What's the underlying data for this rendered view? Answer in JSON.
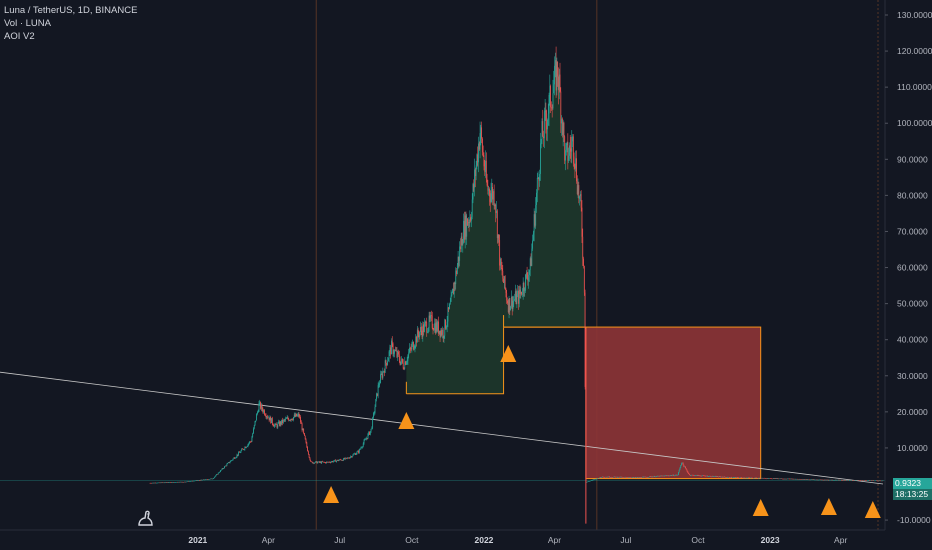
{
  "legend": {
    "symbol": "Luna / TetherUS, 1D, BINANCE",
    "volume": "Vol · LUNA",
    "indicator": "AOI V2"
  },
  "colors": {
    "background": "#131722",
    "up": "#26a69a",
    "down": "#ef5350",
    "zone_green": "#1f3a2c",
    "zone_red": "#8b3436",
    "zone_border": "#f7931a",
    "triangle": "#f7931a",
    "trendline": "#c8c8c8",
    "session_line": "#8a4b2a"
  },
  "current_price": "0.9323",
  "countdown": "18:13:25",
  "icons": [
    "tradingview-logo-icon"
  ],
  "chart_data": {
    "type": "candlestick",
    "title": "Luna / TetherUS, 1D, BINANCE",
    "x_range": [
      "2020-11-01",
      "2023-05-25"
    ],
    "y_range": [
      -12,
      135
    ],
    "y_ticks": [
      -10,
      0,
      10,
      20,
      30,
      40,
      50,
      60,
      70,
      80,
      90,
      100,
      110,
      120,
      130
    ],
    "y_tick_labels": [
      "-10.0000",
      "",
      "10.0000",
      "20.0000",
      "30.0000",
      "40.0000",
      "50.0000",
      "60.0000",
      "70.0000",
      "80.0000",
      "90.0000",
      "100.0000",
      "110.0000",
      "120.0000",
      "130.0000"
    ],
    "x_ticks": [
      {
        "date": "2021-01-01",
        "label": "2021",
        "bold": true
      },
      {
        "date": "2021-04-01",
        "label": "Apr",
        "bold": false
      },
      {
        "date": "2021-07-01",
        "label": "Jul",
        "bold": false
      },
      {
        "date": "2021-10-01",
        "label": "Oct",
        "bold": false
      },
      {
        "date": "2022-01-01",
        "label": "2022",
        "bold": true
      },
      {
        "date": "2022-04-01",
        "label": "Apr",
        "bold": false
      },
      {
        "date": "2022-07-01",
        "label": "Jul",
        "bold": false
      },
      {
        "date": "2022-10-01",
        "label": "Oct",
        "bold": false
      },
      {
        "date": "2023-01-01",
        "label": "2023",
        "bold": true
      },
      {
        "date": "2023-04-01",
        "label": "Apr",
        "bold": false
      }
    ],
    "price_path": [
      [
        "2020-11-01",
        0.3
      ],
      [
        "2020-12-15",
        0.6
      ],
      [
        "2021-01-20",
        1.5
      ],
      [
        "2021-02-05",
        5
      ],
      [
        "2021-02-20",
        8
      ],
      [
        "2021-03-10",
        12
      ],
      [
        "2021-03-20",
        22
      ],
      [
        "2021-04-10",
        16
      ],
      [
        "2021-04-25",
        18
      ],
      [
        "2021-05-10",
        19
      ],
      [
        "2021-05-18",
        12
      ],
      [
        "2021-05-25",
        6
      ],
      [
        "2021-06-15",
        6
      ],
      [
        "2021-07-10",
        7
      ],
      [
        "2021-07-25",
        9
      ],
      [
        "2021-08-10",
        15
      ],
      [
        "2021-08-20",
        28
      ],
      [
        "2021-09-05",
        38
      ],
      [
        "2021-09-20",
        33
      ],
      [
        "2021-10-10",
        42
      ],
      [
        "2021-10-25",
        45
      ],
      [
        "2021-11-10",
        42
      ],
      [
        "2021-11-20",
        50
      ],
      [
        "2021-12-05",
        70
      ],
      [
        "2021-12-15",
        75
      ],
      [
        "2021-12-27",
        98
      ],
      [
        "2022-01-05",
        82
      ],
      [
        "2022-01-15",
        80
      ],
      [
        "2022-01-22",
        60
      ],
      [
        "2022-02-01",
        50
      ],
      [
        "2022-02-15",
        52
      ],
      [
        "2022-03-01",
        60
      ],
      [
        "2022-03-15",
        95
      ],
      [
        "2022-03-25",
        105
      ],
      [
        "2022-04-05",
        115
      ],
      [
        "2022-04-15",
        90
      ],
      [
        "2022-04-25",
        95
      ],
      [
        "2022-05-01",
        82
      ],
      [
        "2022-05-05",
        75
      ],
      [
        "2022-05-09",
        55
      ],
      [
        "2022-05-11",
        0.5
      ],
      [
        "2022-06-01",
        2
      ],
      [
        "2022-07-15",
        1.8
      ],
      [
        "2022-09-05",
        2.5
      ],
      [
        "2022-09-10",
        6
      ],
      [
        "2022-09-20",
        2.5
      ],
      [
        "2022-11-15",
        1.8
      ],
      [
        "2023-01-15",
        1.5
      ],
      [
        "2023-03-01",
        1.2
      ],
      [
        "2023-05-25",
        0.93
      ]
    ],
    "volume_note": "",
    "zones": [
      {
        "kind": "demand",
        "start": "2021-09-24",
        "end": "2022-01-26",
        "bottom": 25,
        "top_follows_price": true
      },
      {
        "kind": "demand",
        "start": "2022-01-26",
        "end": "2022-05-11",
        "bottom": 43.5,
        "top_follows_price": true
      },
      {
        "kind": "supply",
        "start": "2022-05-11",
        "end": "2022-12-20",
        "bottom": 1.5,
        "top": 43.5
      }
    ],
    "triangles": [
      "2021-06-20",
      "2021-09-24",
      "2022-02-01",
      "2022-12-20",
      "2023-03-17",
      "2023-05-12"
    ],
    "trendline": [
      [
        "2020-11-01",
        31
      ],
      [
        "2023-05-25",
        0
      ]
    ],
    "vertical_lines": [
      "2021-06-01",
      "2022-05-25"
    ],
    "price_line": 0.9323
  }
}
